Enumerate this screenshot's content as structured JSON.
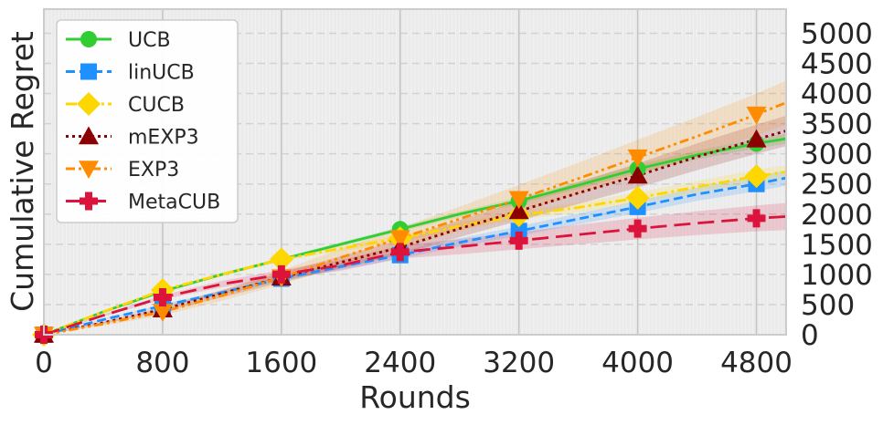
{
  "chart_data": {
    "type": "line",
    "title": "",
    "xlabel": "Rounds",
    "ylabel": "Cumulative Regret",
    "xlim": [
      0,
      5000
    ],
    "ylim": [
      0,
      5400
    ],
    "xticks": [
      0,
      800,
      1600,
      2400,
      3200,
      4000,
      4800
    ],
    "yticks": [
      0,
      500,
      1000,
      1500,
      2000,
      2500,
      3000,
      3500,
      4000,
      4500,
      5000
    ],
    "y_axis_side": "right",
    "grid": true,
    "legend_position": "top-left",
    "x": [
      0,
      400,
      800,
      1200,
      1600,
      2000,
      2400,
      2800,
      3200,
      3600,
      4000,
      4400,
      4800,
      5000
    ],
    "series": [
      {
        "name": "UCB",
        "color": "#32cd32",
        "dash": "solid",
        "marker": "circle",
        "values": [
          0,
          380,
          720,
          1000,
          1250,
          1500,
          1750,
          2000,
          2220,
          2480,
          2750,
          2980,
          3170,
          3250
        ],
        "band": 60
      },
      {
        "name": "linUCB",
        "color": "#1e90ff",
        "dash": "dashed",
        "marker": "square",
        "values": [
          0,
          250,
          480,
          700,
          930,
          1130,
          1320,
          1530,
          1720,
          1920,
          2120,
          2330,
          2500,
          2600
        ],
        "band": 90
      },
      {
        "name": "CUCB",
        "color": "#ffd700",
        "dash": "dashdot",
        "marker": "diamond",
        "values": [
          0,
          380,
          740,
          1000,
          1250,
          1430,
          1600,
          1800,
          1980,
          2110,
          2270,
          2450,
          2630,
          2700
        ],
        "band": 80
      },
      {
        "name": "mEXP3",
        "color": "#8b0000",
        "dash": "dotted",
        "marker": "triangle-up",
        "values": [
          0,
          200,
          420,
          680,
          950,
          1200,
          1450,
          1760,
          2050,
          2350,
          2640,
          2950,
          3240,
          3380
        ],
        "band": 180
      },
      {
        "name": "EXP3",
        "color": "#ff8c00",
        "dash": "dashdotdot",
        "marker": "triangle-down",
        "values": [
          0,
          180,
          380,
          650,
          950,
          1280,
          1600,
          1920,
          2250,
          2590,
          2940,
          3290,
          3650,
          3850
        ],
        "band": 260
      },
      {
        "name": "MetaCUB",
        "color": "#dc143c",
        "dash": "longdash",
        "marker": "plus",
        "values": [
          0,
          320,
          620,
          840,
          1000,
          1150,
          1370,
          1460,
          1560,
          1660,
          1760,
          1850,
          1930,
          1960
        ],
        "band": 160
      }
    ],
    "marker_x": [
      0,
      800,
      1600,
      2400,
      3200,
      4000,
      4800
    ]
  }
}
